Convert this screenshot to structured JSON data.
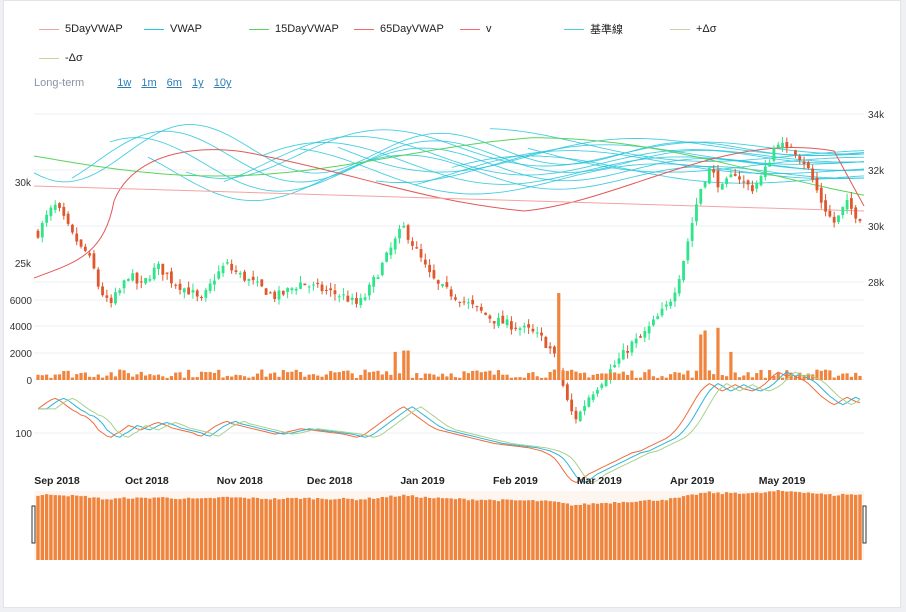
{
  "legend": [
    {
      "label": "5DayVWAP",
      "color": "#f4a3a3"
    },
    {
      "label": "VWAP",
      "color": "#26c6da"
    },
    {
      "label": "15DayVWAP",
      "color": "#5ad45a"
    },
    {
      "label": "65DayVWAP",
      "color": "#f06b6b"
    },
    {
      "label": "v",
      "color": "#f06b6b"
    },
    {
      "label": "基準線",
      "color": "#4dd0e1"
    },
    {
      "label": "+Δσ",
      "color": "#c8d4a0"
    },
    {
      "label": "-Δσ",
      "color": "#c8d4a0"
    }
  ],
  "range_selector": {
    "label": "Long-term",
    "buttons": [
      "1w",
      "1m",
      "6m",
      "1y",
      "10y"
    ]
  },
  "colors": {
    "up": "#2ee58a",
    "down": "#e0572e",
    "volume": "#f0843c",
    "navigator": "#f0843c",
    "vwap": "#26c6da",
    "vwap15": "#5ad45a",
    "vwap65": "#e05a5a",
    "vwap5": "#f4a3a3",
    "osc1": "#f06b3c",
    "osc2": "#2cb5d8",
    "osc3": "#a8d08d"
  },
  "chart_data": {
    "type": "candlestick",
    "x_start": "2018-08-27",
    "x_end": "2019-05-31",
    "date_ticks": [
      {
        "label": "Sep 2018",
        "date": "2018-09-01"
      },
      {
        "label": "Oct 2018",
        "date": "2018-10-01"
      },
      {
        "label": "Nov 2018",
        "date": "2018-11-01"
      },
      {
        "label": "Dec 2018",
        "date": "2018-12-01"
      },
      {
        "label": "Jan 2019",
        "date": "2019-01-01"
      },
      {
        "label": "Feb 2019",
        "date": "2019-02-01"
      },
      {
        "label": "Mar 2019",
        "date": "2019-03-01"
      },
      {
        "label": "Apr 2019",
        "date": "2019-04-01"
      },
      {
        "label": "May 2019",
        "date": "2019-05-01"
      }
    ],
    "price_left_ticks": [
      "30k",
      "25k"
    ],
    "price_right_ticks": [
      "34k",
      "32k",
      "30k",
      "28k"
    ],
    "price_left_range": [
      21000,
      35000
    ],
    "volume_ticks": [
      "6000",
      "4000",
      "2000",
      "0"
    ],
    "volume_range": [
      0,
      6500
    ],
    "osc_ticks": [
      "100"
    ],
    "price_series": [
      29600,
      29900,
      30200,
      30450,
      30600,
      30400,
      30100,
      29800,
      29500,
      29300,
      29000,
      28900,
      28600,
      28200,
      27600,
      27300,
      27000,
      26900,
      27200,
      27400,
      27700,
      28000,
      27900,
      27700,
      27600,
      27800,
      28000,
      28200,
      28300,
      28150,
      28000,
      27800,
      27700,
      27600,
      27500,
      27400,
      27300,
      27100,
      27000,
      27300,
      27600,
      27900,
      28100,
      28300,
      28400,
      28200,
      28100,
      28000,
      27900,
      27800,
      27700,
      27600,
      27500,
      27400,
      27300,
      27200,
      27250,
      27300,
      27400,
      27500,
      27600,
      27700,
      27650,
      27600,
      27550,
      27500,
      27450,
      27400,
      27350,
      27300,
      27250,
      27200,
      27100,
      27000,
      26900,
      27000,
      27200,
      27500,
      27800,
      28100,
      28400,
      28700,
      29000,
      29300,
      29600,
      29800,
      29500,
      29200,
      28900,
      28600,
      28300,
      28000,
      27800,
      27600,
      27500,
      27400,
      27300,
      27200,
      27100,
      27000,
      26900,
      26800,
      26700,
      26600,
      26500,
      26400,
      26300,
      26250,
      26200,
      26150,
      26100,
      26050,
      26000,
      25950,
      25900,
      25800,
      25700,
      25600,
      25400,
      25200,
      24900,
      24400,
      23800,
      23200,
      22800,
      22600,
      22800,
      23100,
      23400,
      23600,
      23800,
      24000,
      24200,
      24400,
      24600,
      24800,
      25000,
      25200,
      25400,
      25500,
      25600,
      25800,
      26000,
      26200,
      26400,
      26600,
      26800,
      27100,
      27500,
      28000,
      28600,
      29300,
      30000,
      30700,
      31300,
      31700,
      32000,
      31800,
      31500,
      31300,
      31500,
      31700,
      31900,
      31700,
      31500,
      31400,
      31300,
      31500,
      31700,
      32000,
      32400,
      32800,
      33100,
      32900,
      32700,
      32900,
      32700,
      32500,
      32300,
      32000,
      31600,
      31200,
      30800,
      30500,
      30200,
      30000,
      30200,
      30500,
      30700,
      30500,
      30300,
      30200
    ],
    "price_range_right": [
      27400,
      34300
    ],
    "volume_spikes": [
      {
        "index": 83,
        "value": 2100
      },
      {
        "index": 85,
        "value": 2200
      },
      {
        "index": 86,
        "value": 2200
      },
      {
        "index": 121,
        "value": 6500
      },
      {
        "index": 154,
        "value": 3400
      },
      {
        "index": 155,
        "value": 3700
      },
      {
        "index": 158,
        "value": 3900
      },
      {
        "index": 161,
        "value": 2100
      }
    ]
  }
}
